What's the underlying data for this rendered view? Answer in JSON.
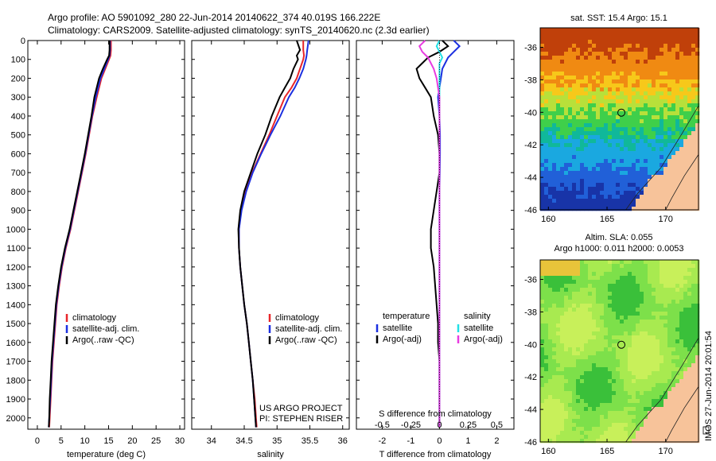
{
  "header": {
    "line1": "Argo profile: AO 5901092_280 22-Jun-2014 20140622_374 40.019S 166.222E",
    "line2": "Climatology: CARS2009. Satellite-adjusted climatology: synTS_20140620.nc (2.3d earlier)"
  },
  "footer": {
    "project": "US ARGO PROJECT",
    "pi": "PI: STEPHEN RISER",
    "stamp": "IMOS 27-Jun-2014 20:01:54"
  },
  "colors": {
    "climatology": "#e8262a",
    "satellite": "#1b2fe0",
    "argo": "#000000",
    "sal_satellite": "#22e0e6",
    "sal_argo": "#e83be0",
    "land": "#f7c39a"
  },
  "chart_data": [
    {
      "type": "line",
      "name": "temperature",
      "xlabel": "temperature (deg C)",
      "ylabel": "",
      "xlim": [
        -2,
        31
      ],
      "ylim": [
        2060,
        0
      ],
      "x_ticks": [
        0,
        5,
        10,
        15,
        20,
        25,
        30
      ],
      "y_ticks": [
        0,
        100,
        200,
        300,
        400,
        500,
        600,
        700,
        800,
        900,
        1000,
        1100,
        1200,
        1300,
        1400,
        1500,
        1600,
        1700,
        1800,
        1900,
        2000
      ],
      "depth": [
        0,
        50,
        80,
        100,
        150,
        200,
        300,
        400,
        500,
        600,
        700,
        800,
        900,
        1000,
        1100,
        1200,
        1300,
        1400,
        1500,
        1600,
        1700,
        1800,
        1900,
        2000,
        2050
      ],
      "legend": [
        "climatology",
        "satellite-adj. clim.",
        "Argo(..raw -QC)"
      ],
      "series": [
        {
          "name": "climatology",
          "key": "climatology",
          "values": [
            15.5,
            15.5,
            15.4,
            15.1,
            14.3,
            13.5,
            12.5,
            11.6,
            10.9,
            10.2,
            9.4,
            8.6,
            7.8,
            7.0,
            6.0,
            5.2,
            4.6,
            4.1,
            3.8,
            3.5,
            3.2,
            3.0,
            2.8,
            2.6,
            2.5
          ]
        },
        {
          "name": "satellite-adj. clim.",
          "key": "satellite",
          "values": [
            15.3,
            15.3,
            15.2,
            14.9,
            14.1,
            13.3,
            12.3,
            11.5,
            10.8,
            10.1,
            9.3,
            8.5,
            7.7,
            6.9,
            5.9,
            5.1,
            4.5,
            4.0,
            3.7,
            3.4,
            3.1,
            2.9,
            2.7,
            2.5,
            2.4
          ]
        },
        {
          "name": "Argo(..raw -QC)",
          "key": "argo",
          "values": [
            15.2,
            15.2,
            15.1,
            14.7,
            13.8,
            13.0,
            12.0,
            11.4,
            10.7,
            10.0,
            9.2,
            8.4,
            7.6,
            6.8,
            5.8,
            5.0,
            4.4,
            3.9,
            3.6,
            3.3,
            3.0,
            2.8,
            2.6,
            2.5,
            2.4
          ]
        }
      ]
    },
    {
      "type": "line",
      "name": "salinity",
      "xlabel": "salinity",
      "ylabel": "",
      "xlim": [
        33.7,
        36.1
      ],
      "ylim": [
        2060,
        0
      ],
      "x_ticks": [
        34,
        34.5,
        35,
        35.5,
        36
      ],
      "depth": [
        0,
        50,
        80,
        100,
        150,
        200,
        250,
        300,
        400,
        500,
        600,
        700,
        800,
        900,
        1000,
        1100,
        1200,
        1300,
        1400,
        1500,
        1600,
        1700,
        1800,
        1900,
        2000,
        2050
      ],
      "legend": [
        "climatology",
        "satellite-adj. clim.",
        "Argo(..raw -QC)"
      ],
      "series": [
        {
          "name": "climatology",
          "key": "climatology",
          "values": [
            35.4,
            35.4,
            35.41,
            35.4,
            35.35,
            35.3,
            35.22,
            35.12,
            35.0,
            34.88,
            34.75,
            34.62,
            34.52,
            34.45,
            34.42,
            34.42,
            34.44,
            34.47,
            34.5,
            34.54,
            34.57,
            34.6,
            34.63,
            34.66,
            34.68,
            34.69
          ]
        },
        {
          "name": "satellite-adj. clim.",
          "key": "satellite",
          "values": [
            35.48,
            35.46,
            35.45,
            35.44,
            35.4,
            35.34,
            35.27,
            35.18,
            35.05,
            34.9,
            34.76,
            34.63,
            34.53,
            34.46,
            34.42,
            34.42,
            34.44,
            34.47,
            34.5,
            34.54,
            34.57,
            34.6,
            34.63,
            34.65,
            34.67,
            34.68
          ]
        },
        {
          "name": "Argo(..raw -QC)",
          "key": "argo",
          "values": [
            35.3,
            35.35,
            35.3,
            35.32,
            35.25,
            35.2,
            35.12,
            35.04,
            34.92,
            34.82,
            34.7,
            34.6,
            34.5,
            34.44,
            34.41,
            34.42,
            34.44,
            34.47,
            34.5,
            34.54,
            34.57,
            34.6,
            34.63,
            34.65,
            34.67,
            34.68
          ]
        }
      ]
    },
    {
      "type": "line",
      "name": "differences",
      "xlabel": "T difference from climatology",
      "xlabel_top": "S difference from climatology",
      "xlim": [
        -2.9,
        2.6
      ],
      "ylim": [
        2060,
        0
      ],
      "x_ticks": [
        -2,
        -1,
        0,
        1,
        2
      ],
      "x_ticks_top": [
        "-0.5",
        "-0.25",
        "0",
        "0.25",
        "0.5"
      ],
      "x_ticks_top_pos": [
        -2,
        -1,
        0,
        1,
        2
      ],
      "depth": [
        0,
        30,
        60,
        90,
        120,
        150,
        200,
        250,
        300,
        400,
        500,
        600,
        700,
        800,
        900,
        1000,
        1100,
        1200,
        1300,
        1400,
        1500,
        1600,
        1700,
        1800,
        1900,
        2000,
        2050
      ],
      "legend_temperature": {
        "title": "temperature",
        "items": [
          "satellite",
          "Argo(-adj)"
        ]
      },
      "legend_salinity": {
        "title": "salinity",
        "items": [
          "satellite",
          "Argo(-adj)"
        ]
      },
      "series": [
        {
          "name": "satellite",
          "key": "satellite",
          "values": [
            0.5,
            0.7,
            0.5,
            0.3,
            0.2,
            0.1,
            0.05,
            0,
            -0.05,
            0,
            0.02,
            0.02,
            0.01,
            0,
            0,
            0,
            0,
            0,
            0,
            0,
            0,
            0,
            0,
            0,
            0,
            0,
            0
          ]
        },
        {
          "name": "Argo(-adj)",
          "key": "argo",
          "values": [
            0.1,
            0.3,
            0.0,
            -0.4,
            -0.6,
            -0.8,
            -0.7,
            -0.5,
            -0.3,
            -0.2,
            -0.05,
            0,
            0,
            -0.1,
            -0.2,
            -0.3,
            -0.3,
            -0.2,
            -0.15,
            -0.1,
            -0.05,
            -0.05,
            0,
            0,
            0,
            0,
            0
          ]
        },
        {
          "name": "salinity satellite",
          "key": "sal_satellite",
          "values": [
            0,
            -0.1,
            0.0,
            0.1,
            0.0,
            0.0,
            0.0,
            0,
            0,
            0,
            0,
            0,
            0,
            0,
            0,
            0,
            0,
            0,
            0,
            0,
            0,
            0,
            0,
            0,
            0,
            0,
            0
          ]
        },
        {
          "name": "salinity Argo(-adj)",
          "key": "sal_argo",
          "values": [
            -0.5,
            -0.7,
            -0.6,
            -0.4,
            -0.3,
            -0.2,
            -0.1,
            -0.05,
            0,
            0,
            0,
            0,
            0,
            0,
            0,
            0,
            0,
            0,
            0,
            0,
            0,
            0,
            0,
            0,
            0,
            0,
            0
          ]
        }
      ]
    },
    {
      "type": "heatmap",
      "name": "sst-map",
      "title": "sat. SST: 15.4  Argo: 15.1",
      "xlim": [
        159.3,
        172.8
      ],
      "ylim": [
        -46,
        -34.8
      ],
      "x_ticks": [
        160,
        165,
        170
      ],
      "y_ticks": [
        -36,
        -38,
        -40,
        -42,
        -44,
        -46
      ],
      "marker": {
        "lon": 166.222,
        "lat": -40.019
      }
    },
    {
      "type": "heatmap",
      "name": "sla-map",
      "title_line1": "Altim. SLA: 0.055",
      "title_line2": "Argo h1000: 0.011 h2000: 0.0053",
      "xlim": [
        159.3,
        172.8
      ],
      "ylim": [
        -46,
        -34.8
      ],
      "x_ticks": [
        160,
        165,
        170
      ],
      "y_ticks": [
        -36,
        -38,
        -40,
        -42,
        -44,
        -46
      ],
      "marker": {
        "lon": 166.222,
        "lat": -40.019
      }
    }
  ]
}
